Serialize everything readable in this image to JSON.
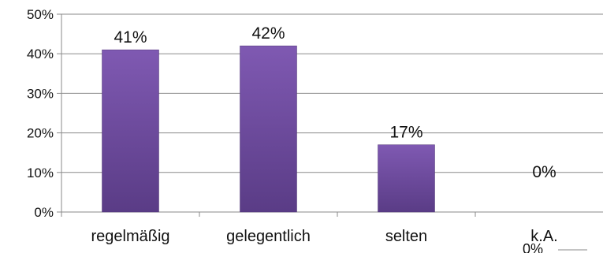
{
  "chart_data": {
    "type": "bar",
    "categories": [
      "regelmäßig",
      "gelegentlich",
      "selten",
      "k.A."
    ],
    "values": [
      41,
      42,
      17,
      0
    ],
    "data_labels": [
      "41%",
      "42%",
      "17%",
      "0%"
    ],
    "y_ticks": [
      "0%",
      "10%",
      "20%",
      "30%",
      "40%",
      "50%"
    ],
    "ylim": [
      0,
      50
    ],
    "grid": true,
    "legend": "none",
    "bar_color": "#6f4b9f",
    "bar_color_top": "#7f59b2",
    "bar_color_bottom": "#5a3c86",
    "stray_label": "0%"
  }
}
